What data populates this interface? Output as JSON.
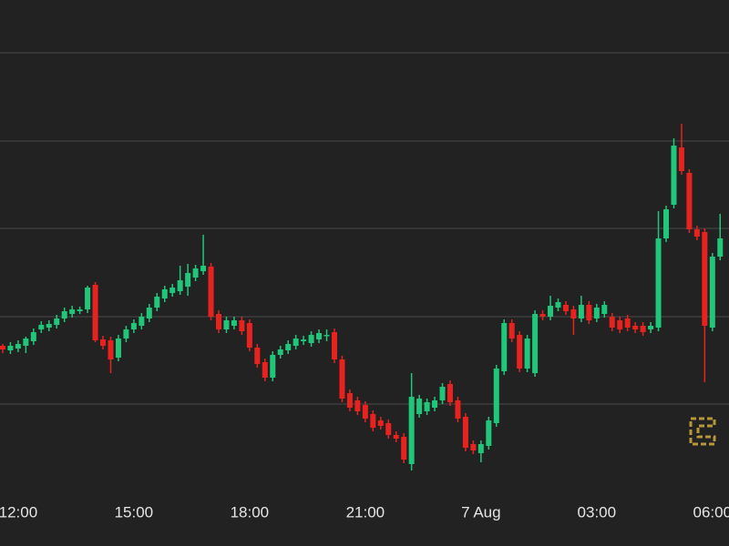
{
  "chart_data": {
    "type": "candlestick",
    "x": [
      11.6,
      11.8,
      12,
      12.2,
      12.4,
      12.6,
      12.8,
      13,
      13.2,
      13.4,
      13.6,
      13.8,
      14,
      14.2,
      14.4,
      14.6,
      14.8,
      15,
      15.2,
      15.4,
      15.6,
      15.8,
      16,
      16.2,
      16.4,
      16.6,
      16.8,
      17,
      17.2,
      17.4,
      17.6,
      17.8,
      18,
      18.2,
      18.4,
      18.6,
      18.8,
      19,
      19.2,
      19.4,
      19.6,
      19.8,
      20,
      20.2,
      20.4,
      20.6,
      20.8,
      21,
      21.2,
      21.4,
      21.6,
      21.8,
      22,
      22.2,
      22.4,
      22.6,
      22.8,
      23,
      23.2,
      23.4,
      23.6,
      23.8,
      24,
      24.2,
      24.4,
      24.6,
      24.8,
      25,
      25.2,
      25.4,
      25.6,
      25.8,
      26,
      26.2,
      26.4,
      26.6,
      26.8,
      27,
      27.2,
      27.4,
      27.6,
      27.8,
      28,
      28.2,
      28.4,
      28.6,
      28.8,
      29,
      29.2,
      29.4,
      29.6,
      29.8,
      30,
      30.2
    ],
    "open": [
      161,
      156,
      158,
      161,
      166,
      179,
      181,
      184,
      191,
      196,
      199,
      201,
      228,
      168,
      167,
      148,
      169,
      179,
      183,
      191,
      203,
      213,
      219,
      221,
      226,
      236,
      243,
      248,
      196,
      179,
      183,
      189,
      186,
      159,
      143,
      126,
      151,
      156,
      161,
      166,
      164,
      168,
      173,
      176,
      146,
      109,
      101,
      96,
      86,
      79,
      76,
      63,
      61,
      31,
      86,
      89,
      93,
      101,
      119,
      101,
      83,
      53,
      43,
      51,
      76,
      133,
      186,
      173,
      136,
      131,
      196,
      193,
      203,
      206,
      201,
      191,
      206,
      191,
      196,
      193,
      189,
      191,
      183,
      183,
      179,
      181,
      279,
      316,
      379,
      351,
      289,
      286,
      181,
      259
    ],
    "high": [
      163,
      165,
      167,
      171,
      180,
      188,
      189,
      195,
      203,
      205,
      204,
      227,
      231,
      172,
      171,
      173,
      183,
      190,
      197,
      207,
      219,
      227,
      229,
      249,
      251,
      250,
      283,
      252,
      200,
      193,
      193,
      193,
      190,
      163,
      147,
      155,
      161,
      167,
      173,
      172,
      177,
      179,
      179,
      180,
      150,
      113,
      105,
      100,
      90,
      83,
      80,
      67,
      65,
      131,
      107,
      103,
      105,
      120,
      123,
      105,
      87,
      57,
      57,
      83,
      140,
      190,
      190,
      177,
      173,
      200,
      200,
      216,
      213,
      210,
      205,
      216,
      210,
      207,
      210,
      197,
      193,
      195,
      187,
      187,
      187,
      309,
      315,
      389,
      405,
      355,
      293,
      290,
      263,
      306
    ],
    "low": [
      153,
      152,
      154,
      153,
      162,
      175,
      177,
      180,
      187,
      192,
      196,
      197,
      165,
      157,
      131,
      144,
      165,
      175,
      179,
      187,
      199,
      209,
      215,
      217,
      216,
      232,
      239,
      189,
      175,
      175,
      179,
      173,
      155,
      137,
      122,
      122,
      147,
      152,
      157,
      162,
      160,
      164,
      166,
      142,
      99,
      89,
      85,
      77,
      67,
      69,
      59,
      55,
      32,
      24,
      82,
      85,
      89,
      97,
      95,
      77,
      45,
      42,
      33,
      47,
      72,
      129,
      165,
      132,
      132,
      127,
      189,
      189,
      199,
      195,
      173,
      187,
      185,
      187,
      192,
      177,
      175,
      177,
      175,
      172,
      175,
      177,
      275,
      312,
      349,
      285,
      277,
      121,
      177,
      255
    ],
    "close": [
      157,
      161,
      163,
      169,
      176,
      184,
      185,
      191,
      199,
      201,
      201,
      225,
      167,
      161,
      146,
      169,
      179,
      186,
      193,
      203,
      215,
      223,
      225,
      233,
      241,
      246,
      249,
      193,
      179,
      189,
      189,
      177,
      159,
      141,
      126,
      151,
      157,
      163,
      169,
      168,
      173,
      175,
      173,
      146,
      103,
      93,
      89,
      81,
      71,
      73,
      63,
      59,
      36,
      105,
      103,
      99,
      101,
      116,
      99,
      81,
      49,
      46,
      53,
      79,
      136,
      186,
      169,
      136,
      169,
      196,
      193,
      205,
      209,
      199,
      191,
      206,
      189,
      203,
      206,
      181,
      179,
      181,
      179,
      176,
      183,
      279,
      311,
      381,
      353,
      289,
      281,
      183,
      259,
      279
    ],
    "up_color": "#20c77a",
    "down_color": "#e8231f",
    "xlim": [
      11.53,
      30.43
    ],
    "xticks": [
      {
        "value": 12,
        "label": "12:00"
      },
      {
        "value": 15,
        "label": "15:00"
      },
      {
        "value": 18,
        "label": "18:00"
      },
      {
        "value": 21,
        "label": "21:00"
      },
      {
        "value": 24,
        "label": "7 Aug"
      },
      {
        "value": 27,
        "label": "03:00"
      },
      {
        "value": 30,
        "label": "06:00"
      }
    ],
    "ylim": [
      0,
      541
    ],
    "yticks": [
      97,
      193,
      290,
      386,
      483
    ],
    "grid": true
  }
}
